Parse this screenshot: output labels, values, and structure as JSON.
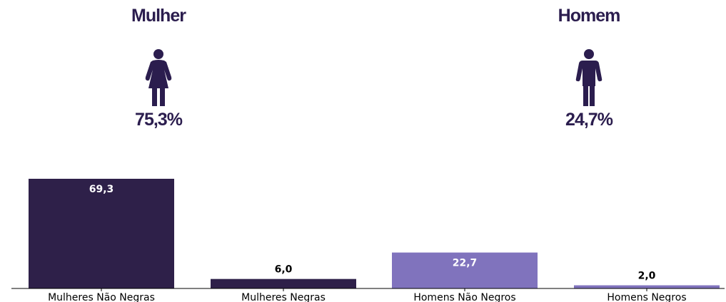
{
  "colors": {
    "text_dark": "#2b1d4e",
    "mulher_bar": "#2e2049",
    "homem_bar": "#8073bd",
    "axis": "#000000"
  },
  "groups": {
    "female": {
      "title": "Mulher",
      "percent": "75,3%",
      "icon": "female-person-icon"
    },
    "male": {
      "title": "Homem",
      "percent": "24,7%",
      "icon": "male-person-icon"
    }
  },
  "chart_data": {
    "type": "bar",
    "categories": [
      "Mulheres Não Negras",
      "Mulheres Negras",
      "Homens Não Negros",
      "Homens Negros"
    ],
    "values": [
      69.3,
      6.0,
      22.7,
      2.0
    ],
    "data_labels": [
      "69,3",
      "6,0",
      "22,7",
      "2,0"
    ],
    "bar_colors": [
      "#2e2049",
      "#2e2049",
      "#8073bd",
      "#8073bd"
    ],
    "label_positions": [
      "inside",
      "above",
      "inside",
      "above"
    ],
    "title": "",
    "xlabel": "",
    "ylabel": "",
    "ylim": [
      0,
      69.3
    ],
    "grid": false,
    "legend": "none"
  }
}
